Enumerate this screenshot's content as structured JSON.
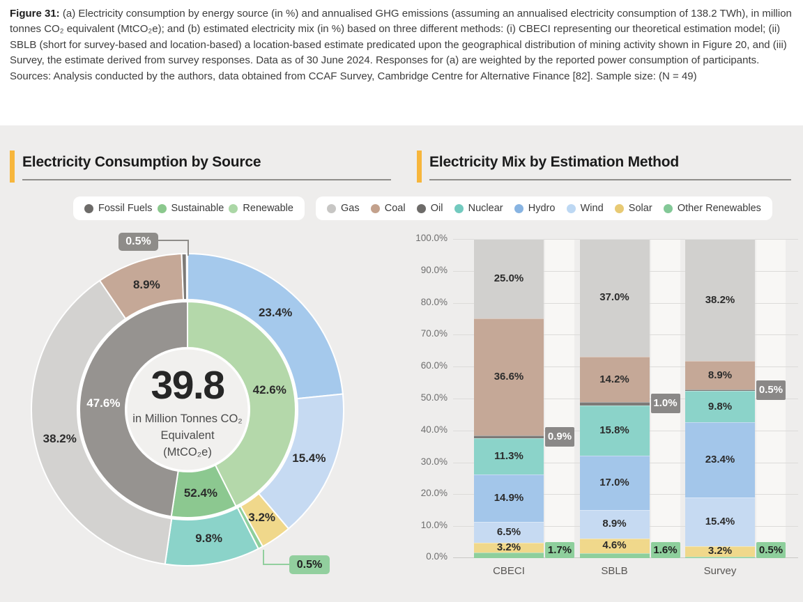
{
  "caption": {
    "prefix": "Figure 31:",
    "body": " (a) Electricity consumption by energy source (in %) and annualised GHG emissions (assuming an annualised electricity consumption of 138.2 TWh), in million tonnes CO₂ equivalent (MtCO₂e); and (b) estimated electricity mix (in %) based on three different methods: (i) CBECI representing our theoretical estimation model; (ii) SBLB (short for survey-based and location-based) a location-based estimate predicated upon the geographical distribution of mining activity shown in Figure 20, and (iii) Survey, the estimate derived from survey responses. Data as of 30 June 2024. Responses for (a) are weighted by the reported power consumption of participants. Sources: Analysis conducted by the authors, data obtained from CCAF Survey, Cambridge Centre for Alternative Finance [82]. Sample size: (N = 49)"
  },
  "theme": {
    "accent": "#f7b63c",
    "panel_bg": "#eeedec"
  },
  "panels": {
    "left": {
      "title": "Electricity Consumption by Source"
    },
    "right": {
      "title": "Electricity Mix by Estimation Method"
    }
  },
  "chart_data": [
    {
      "type": "donut",
      "title": "Electricity Consumption by Source",
      "center_value": "39.8",
      "center_label_lines": [
        "in Million Tonnes CO₂",
        "Equivalent",
        "(MtCO₂e)"
      ],
      "legend": [
        {
          "label": "Fossil Fuels",
          "color": "#6d6b69"
        },
        {
          "label": "Sustainable",
          "color": "#8bc88d"
        },
        {
          "label": "Renewable",
          "color": "#abd7a6"
        }
      ],
      "inner_ring": [
        {
          "name": "Renewable",
          "value": 42.6,
          "label": "42.6%",
          "color": "#b4d8aa"
        },
        {
          "name": "Sustainable",
          "value": 9.8,
          "label": "52.4%",
          "color": "#8cc890"
        },
        {
          "name": "Fossil Fuels",
          "value": 47.6,
          "label": "47.6%",
          "color": "#969390",
          "label_color": "#ffffff"
        }
      ],
      "outer_ring": [
        {
          "name": "Hydro",
          "value": 23.4,
          "label": "23.4%",
          "color": "#a5c9ec"
        },
        {
          "name": "Wind",
          "value": 15.4,
          "label": "15.4%",
          "color": "#c6daf2"
        },
        {
          "name": "Solar",
          "value": 3.2,
          "label": "3.2%",
          "color": "#f0d88b"
        },
        {
          "name": "Other Renewables",
          "value": 0.5,
          "label": "0.5%",
          "color": "#8ecf9c",
          "callout": true
        },
        {
          "name": "Nuclear",
          "value": 9.8,
          "label": "9.8%",
          "color": "#8bd3c9"
        },
        {
          "name": "Gas",
          "value": 38.2,
          "label": "38.2%",
          "color": "#d3d2d0"
        },
        {
          "name": "Coal",
          "value": 8.9,
          "label": "8.9%",
          "color": "#c5a897"
        },
        {
          "name": "Oil",
          "value": 0.5,
          "label": "0.5%",
          "color": "#7d7a77",
          "callout": true
        }
      ]
    },
    {
      "type": "stacked-bar",
      "title": "Electricity Mix by Estimation Method",
      "categories": [
        "CBECI",
        "SBLB",
        "Survey"
      ],
      "y_ticks": [
        "100.0%",
        "90.0%",
        "80.0%",
        "70.0%",
        "60.0%",
        "50.0%",
        "40.0%",
        "30.0%",
        "20.0%",
        "10.0%",
        "0.0%"
      ],
      "ylim": [
        0,
        100
      ],
      "grid": true,
      "series_bottom_to_top": [
        {
          "name": "Other Renewables",
          "color": "#8ecf9c",
          "values": [
            1.7,
            1.6,
            0.5
          ],
          "callout": "green"
        },
        {
          "name": "Solar",
          "color": "#f0d88b",
          "values": [
            3.2,
            4.6,
            3.2
          ]
        },
        {
          "name": "Wind",
          "color": "#c6daf2",
          "values": [
            6.5,
            8.9,
            15.4
          ]
        },
        {
          "name": "Hydro",
          "color": "#a3c6ea",
          "values": [
            14.9,
            17.0,
            23.4
          ]
        },
        {
          "name": "Nuclear",
          "color": "#8bd3c9",
          "values": [
            11.3,
            15.8,
            9.8
          ]
        },
        {
          "name": "Oil",
          "color": "#7d7a77",
          "values": [
            0.9,
            1.0,
            0.5
          ],
          "callout": "gray"
        },
        {
          "name": "Coal",
          "color": "#c5a897",
          "values": [
            36.6,
            14.2,
            8.9
          ]
        },
        {
          "name": "Gas",
          "color": "#d1d0ce",
          "values": [
            25.0,
            37.0,
            38.2
          ]
        }
      ],
      "legend": [
        {
          "label": "Gas",
          "color": "#c7c6c4"
        },
        {
          "label": "Coal",
          "color": "#c3a18c"
        },
        {
          "label": "Oil",
          "color": "#6d6b69"
        },
        {
          "label": "Nuclear",
          "color": "#73cabf"
        },
        {
          "label": "Hydro",
          "color": "#88b4e2"
        },
        {
          "label": "Wind",
          "color": "#bdd8f3"
        },
        {
          "label": "Solar",
          "color": "#e8ca74"
        },
        {
          "label": "Other Renewables",
          "color": "#83c897"
        }
      ]
    }
  ]
}
